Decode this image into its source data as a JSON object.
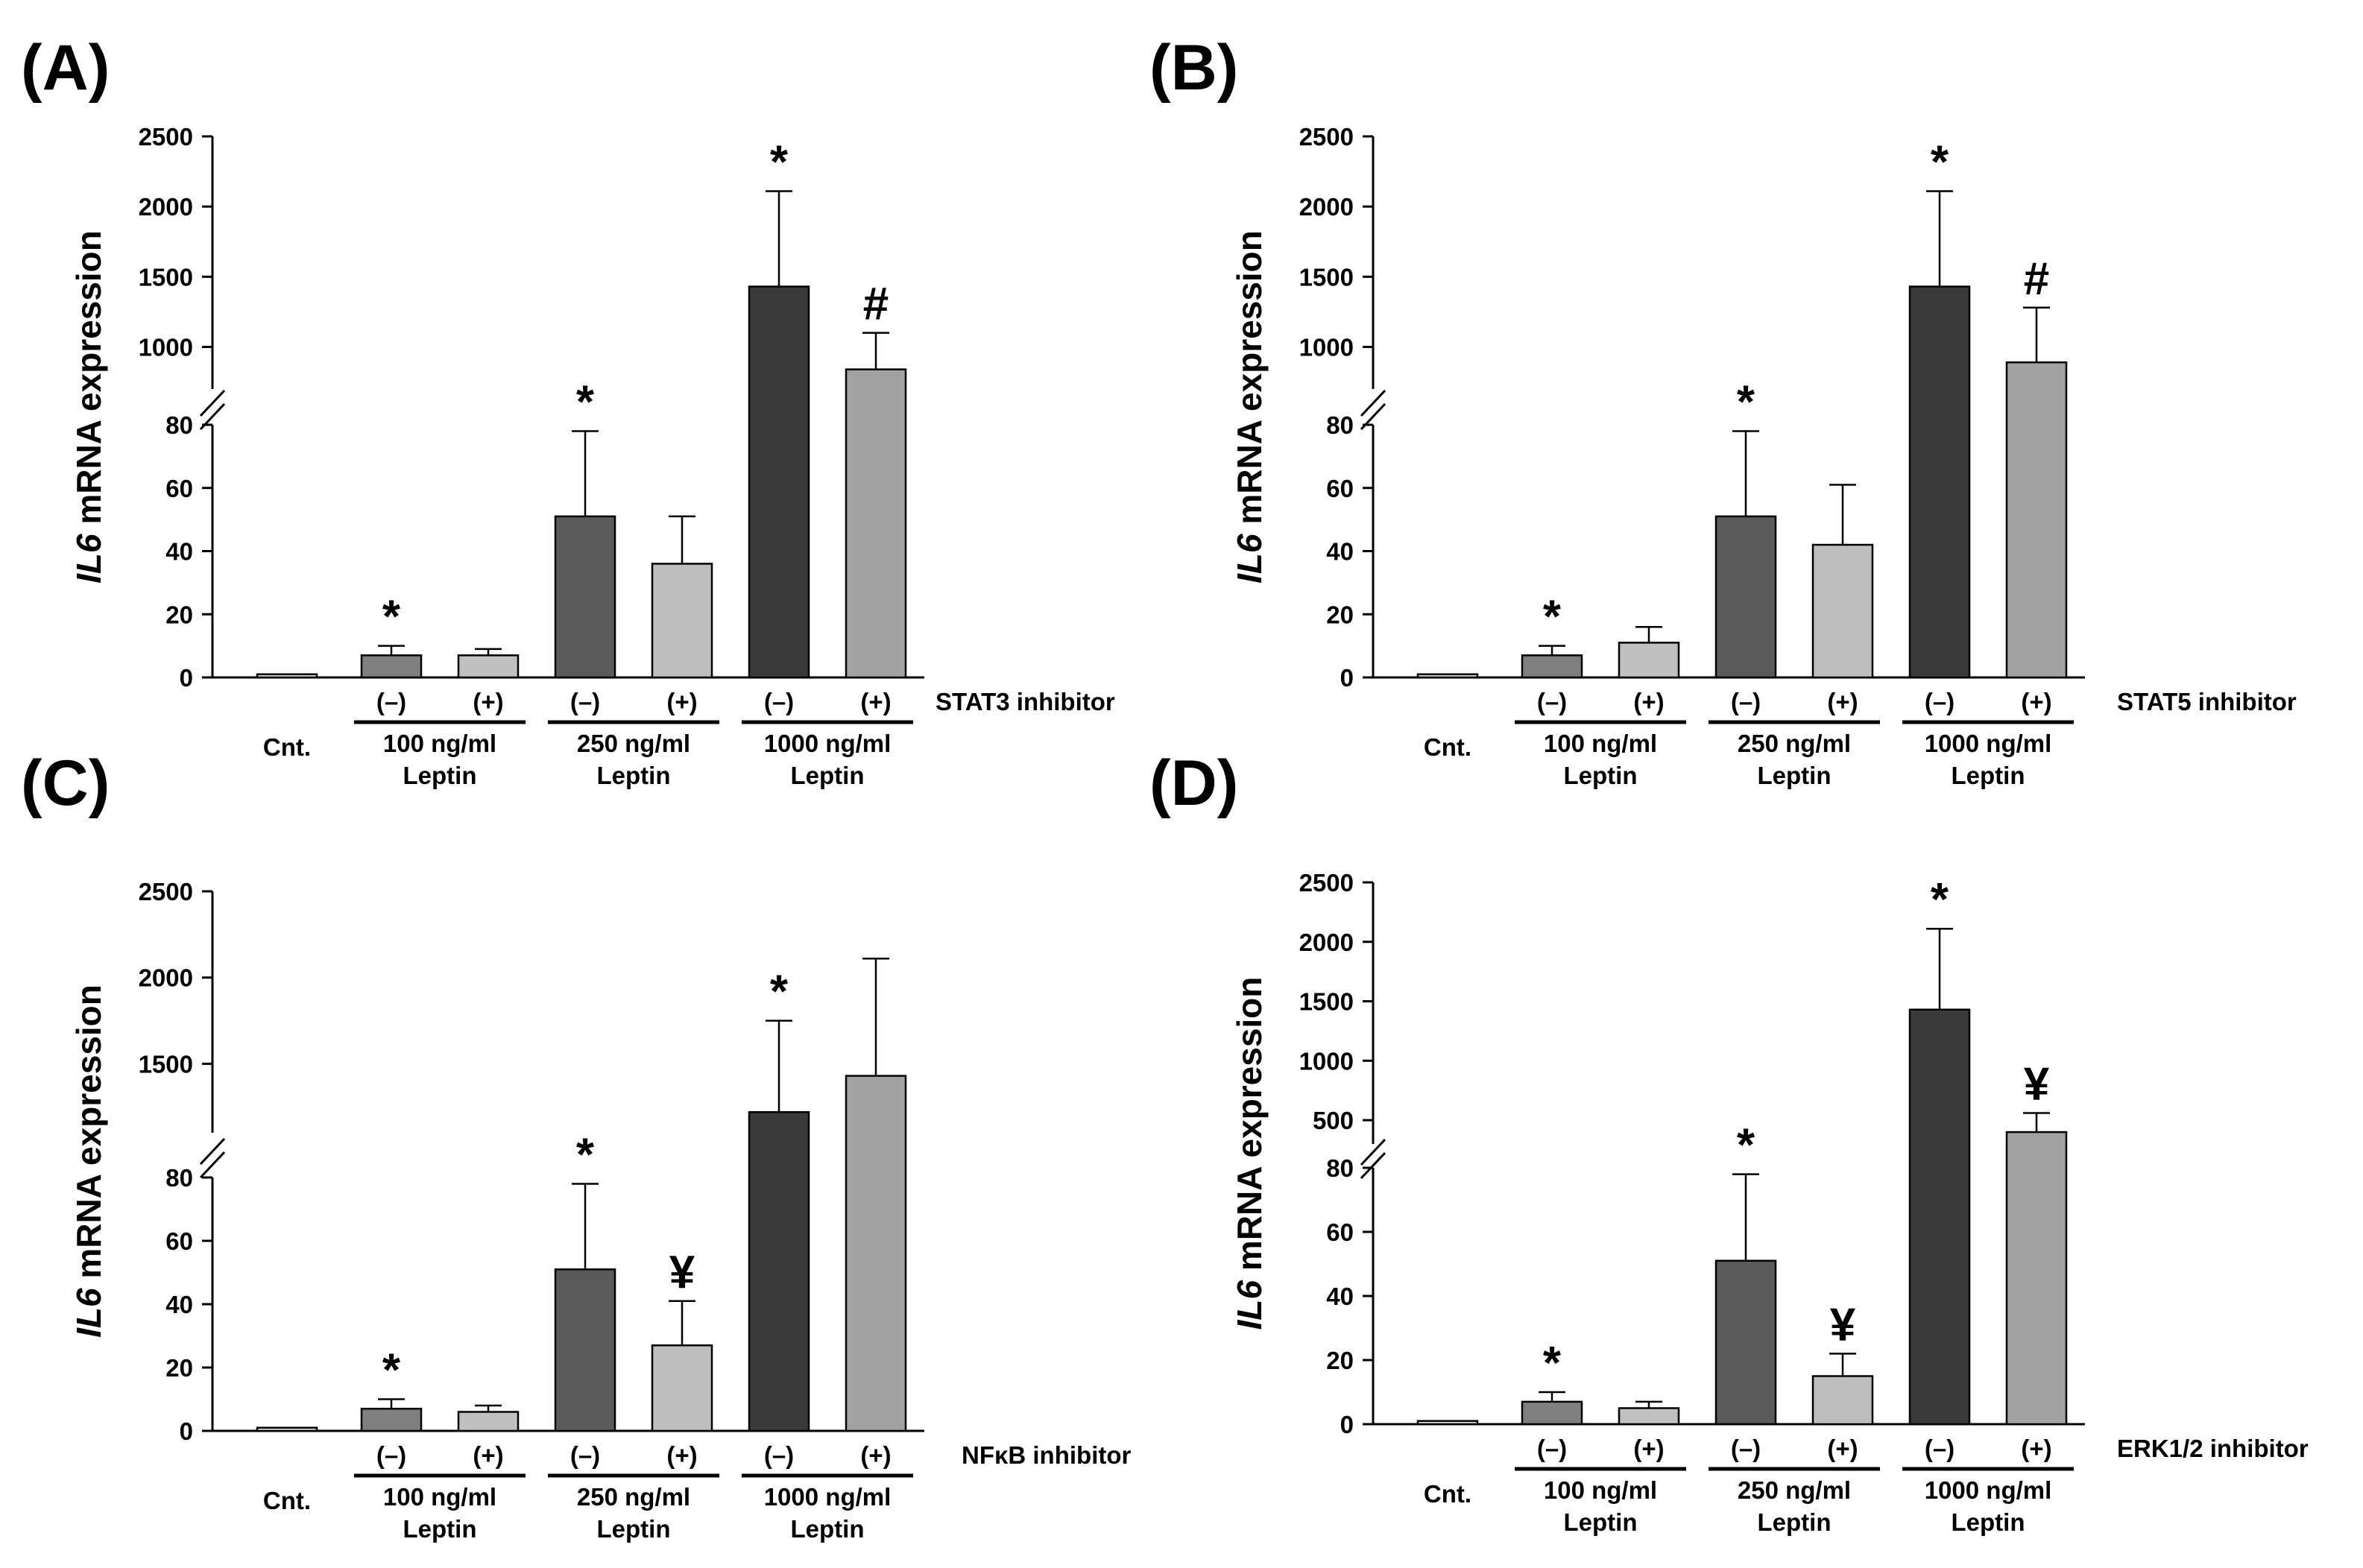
{
  "figure": {
    "y_axis_label_italic": "IL6",
    "y_axis_label_rest": " mRNA expression",
    "control_label": "Cnt.",
    "leptin_word": "Leptin",
    "inhibitor_minus": "(–)",
    "inhibitor_plus": "(+)"
  },
  "chart_data": [
    {
      "type": "bar",
      "panel": "(A)",
      "inhibitor": "STAT3 inhibitor",
      "categories": [
        "Cnt.",
        "100 ng/ml (–)",
        "100 ng/ml (+)",
        "250 ng/ml (–)",
        "250 ng/ml (+)",
        "1000 ng/ml (–)",
        "1000 ng/ml (+)"
      ],
      "dose_labels": [
        "100 ng/ml",
        "250 ng/ml",
        "1000 ng/ml"
      ],
      "values": [
        1,
        7,
        7,
        51,
        36,
        1430,
        840
      ],
      "errors": [
        0,
        3,
        2,
        27,
        15,
        680,
        260
      ],
      "markers": [
        "",
        "*",
        "",
        "*",
        "",
        "*",
        "#"
      ],
      "colors": [
        "#dcdcdc",
        "#7f7f7f",
        "#c0c0c0",
        "#5a5a5a",
        "#bebebe",
        "#3a3a3a",
        "#a2a2a2"
      ],
      "lower_ticks": [
        0,
        20,
        40,
        60,
        80
      ],
      "upper_ticks": [
        1000,
        1500,
        2000,
        2500
      ],
      "ylim_lower": [
        0,
        80
      ],
      "ylim_upper": [
        700,
        2500
      ]
    },
    {
      "type": "bar",
      "panel": "(B)",
      "inhibitor": "STAT5 inhibitor",
      "categories": [
        "Cnt.",
        "100 ng/ml (–)",
        "100 ng/ml (+)",
        "250 ng/ml (–)",
        "250 ng/ml (+)",
        "1000 ng/ml (–)",
        "1000 ng/ml (+)"
      ],
      "dose_labels": [
        "100 ng/ml",
        "250 ng/ml",
        "1000 ng/ml"
      ],
      "values": [
        1,
        7,
        11,
        51,
        42,
        1430,
        890
      ],
      "errors": [
        0,
        3,
        5,
        27,
        19,
        680,
        390
      ],
      "markers": [
        "",
        "*",
        "",
        "*",
        "",
        "*",
        "#"
      ],
      "colors": [
        "#dcdcdc",
        "#7f7f7f",
        "#c0c0c0",
        "#5a5a5a",
        "#bebebe",
        "#3a3a3a",
        "#a2a2a2"
      ],
      "lower_ticks": [
        0,
        20,
        40,
        60,
        80
      ],
      "upper_ticks": [
        1000,
        1500,
        2000,
        2500
      ],
      "ylim_lower": [
        0,
        80
      ],
      "ylim_upper": [
        700,
        2500
      ]
    },
    {
      "type": "bar",
      "panel": "(C)",
      "inhibitor": "NFκB inhibitor",
      "categories": [
        "Cnt.",
        "100 ng/ml (–)",
        "100 ng/ml (+)",
        "250 ng/ml (–)",
        "250 ng/ml (+)",
        "1000 ng/ml (–)",
        "1000 ng/ml (+)"
      ],
      "dose_labels": [
        "100 ng/ml",
        "250 ng/ml",
        "1000 ng/ml"
      ],
      "values": [
        1,
        7,
        6,
        51,
        27,
        1220,
        1430
      ],
      "errors": [
        0,
        3,
        2,
        27,
        14,
        530,
        680
      ],
      "markers": [
        "",
        "*",
        "",
        "*",
        "¥",
        "*",
        ""
      ],
      "colors": [
        "#dcdcdc",
        "#7f7f7f",
        "#c0c0c0",
        "#5a5a5a",
        "#bebebe",
        "#3a3a3a",
        "#a2a2a2"
      ],
      "lower_ticks": [
        0,
        20,
        40,
        60,
        80
      ],
      "upper_ticks": [
        1500,
        2000,
        2500
      ],
      "ylim_lower": [
        0,
        80
      ],
      "ylim_upper": [
        1100,
        2500
      ]
    },
    {
      "type": "bar",
      "panel": "(D)",
      "inhibitor": "ERK1/2 inhibitor",
      "categories": [
        "Cnt.",
        "100 ng/ml (–)",
        "100 ng/ml (+)",
        "250 ng/ml (–)",
        "250 ng/ml (+)",
        "1000 ng/ml (–)",
        "1000 ng/ml (+)"
      ],
      "dose_labels": [
        "100 ng/ml",
        "250 ng/ml",
        "1000 ng/ml"
      ],
      "values": [
        1,
        7,
        5,
        51,
        15,
        1430,
        400
      ],
      "errors": [
        0,
        3,
        2,
        27,
        7,
        680,
        160
      ],
      "markers": [
        "",
        "*",
        "",
        "*",
        "¥",
        "*",
        "¥"
      ],
      "colors": [
        "#dcdcdc",
        "#7f7f7f",
        "#c0c0c0",
        "#5a5a5a",
        "#bebebe",
        "#3a3a3a",
        "#a2a2a2"
      ],
      "lower_ticks": [
        0,
        20,
        40,
        60,
        80
      ],
      "upper_ticks": [
        500,
        1000,
        1500,
        2000,
        2500
      ],
      "ylim_lower": [
        0,
        80
      ],
      "ylim_upper": [
        300,
        2500
      ]
    }
  ]
}
